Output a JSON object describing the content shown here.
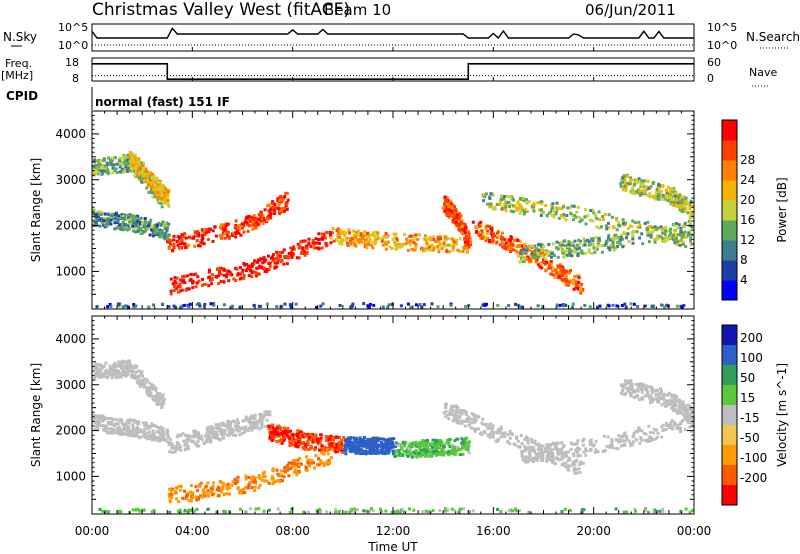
{
  "header": {
    "title": "Christmas Valley West (fitACF)",
    "beam": "Beam 10",
    "date": "06/Jun/2011"
  },
  "params": {
    "nsky_label": "N.Sky",
    "nsearch_label": "N.Search",
    "nsky_ticks": [
      "10^5",
      "10^0"
    ],
    "freq_label_1": "Freq.",
    "freq_label_2": "[MHz]",
    "freq_ticks": [
      "18",
      "8"
    ],
    "nave_label": "Nave",
    "nave_ticks": [
      "60",
      "0"
    ],
    "cpid_label": "CPID",
    "cpid_value": "normal (fast) 151 IF"
  },
  "colors": {
    "power": [
      "#0000ff",
      "#1a3fa5",
      "#3d7d8f",
      "#5fa85a",
      "#c4d33c",
      "#f5b400",
      "#ff8000",
      "#ff4000",
      "#ff0000"
    ],
    "velocity": [
      "#1414b4",
      "#2d5fc8",
      "#2fa05a",
      "#5ac83c",
      "#bebebe",
      "#f0c850",
      "#ff9a00",
      "#ff5a00",
      "#ff0000"
    ],
    "ground_scatter": "#bebebe"
  },
  "chart_data": [
    {
      "type": "line",
      "title": "N.Sky / N.Search",
      "x": [
        "00:00",
        "03:00",
        "15:00",
        "24:00"
      ],
      "series": [
        {
          "name": "N.Sky",
          "style": "solid"
        },
        {
          "name": "N.Search",
          "style": "dotted"
        }
      ],
      "ytick_labels_left": [
        "10^5",
        "10^0"
      ],
      "ytick_labels_right": [
        "10^5",
        "10^0"
      ]
    },
    {
      "type": "line",
      "xlim": [
        "00:00",
        "24:00"
      ],
      "series": [
        {
          "name": "Freq. [MHz]",
          "style": "solid",
          "points": [
            [
              "00:00",
              15.5
            ],
            [
              "03:00",
              15.5
            ],
            [
              "03:00",
              8.8
            ],
            [
              "15:00",
              8.8
            ],
            [
              "15:00",
              15.5
            ],
            [
              "24:00",
              15.5
            ]
          ]
        },
        {
          "name": "Nave",
          "style": "dotted",
          "points": [
            [
              "00:00",
              14
            ],
            [
              "24:00",
              14
            ]
          ]
        }
      ],
      "ylim_left": [
        8,
        18
      ],
      "ylim_right": [
        0,
        60
      ],
      "ytick_labels_left": [
        "18",
        "8"
      ],
      "ytick_labels_right": [
        "60",
        "0"
      ]
    },
    {
      "type": "heatmap",
      "xlabel": "",
      "ylabel": "Slant Range [km]",
      "xlim": [
        0,
        24
      ],
      "ylim": [
        180,
        4500
      ],
      "xtick_labels": [
        "00:00",
        "04:00",
        "08:00",
        "12:00",
        "16:00",
        "20:00",
        "00:00"
      ],
      "ytick_labels": [
        "1000",
        "2000",
        "3000",
        "4000"
      ],
      "colorbar": {
        "label": "Power [dB]",
        "tick_labels": [
          "4",
          "8",
          "12",
          "16",
          "20",
          "24",
          "28"
        ],
        "range": [
          0,
          30
        ]
      },
      "features": [
        {
          "t": [
            0.0,
            1.5,
            2.8
          ],
          "r": [
            3300,
            3400,
            2600
          ],
          "level": 12
        },
        {
          "t": [
            1.5,
            2.3,
            3.0
          ],
          "r": [
            3500,
            3000,
            2600
          ],
          "level": 18
        },
        {
          "t": [
            0.0,
            1.5,
            3.0
          ],
          "r": [
            2200,
            2100,
            1900
          ],
          "level": 10
        },
        {
          "t": [
            3.0,
            6.0,
            7.8
          ],
          "r": [
            1600,
            2000,
            2600
          ],
          "level": 26
        },
        {
          "t": [
            3.0,
            6.5,
            9.5
          ],
          "r": [
            700,
            1100,
            1800
          ],
          "level": 28
        },
        {
          "t": [
            9.5,
            11.5,
            15.0
          ],
          "r": [
            1800,
            1700,
            1600
          ],
          "level": 20
        },
        {
          "t": [
            14.0,
            14.5,
            15.0
          ],
          "r": [
            2500,
            2200,
            1700
          ],
          "level": 24
        },
        {
          "t": [
            15.2,
            17.5,
            19.5
          ],
          "r": [
            2000,
            1400,
            700
          ],
          "level": 24
        },
        {
          "t": [
            15.5,
            19.0,
            24.0
          ],
          "r": [
            2600,
            2300,
            1700
          ],
          "level": 14
        },
        {
          "t": [
            17.0,
            20.0,
            24.0
          ],
          "r": [
            1400,
            1600,
            2000
          ],
          "level": 12
        },
        {
          "t": [
            21.0,
            23.0,
            24.0
          ],
          "r": [
            3000,
            2700,
            2300
          ],
          "level": 14
        },
        {
          "t": [
            0.0,
            12.0,
            24.0
          ],
          "r": [
            250,
            250,
            250
          ],
          "level": 6
        }
      ]
    },
    {
      "type": "heatmap",
      "xlabel": "Time UT",
      "ylabel": "Slant Range [km]",
      "xlim": [
        0,
        24
      ],
      "ylim": [
        180,
        4500
      ],
      "xtick_labels": [
        "00:00",
        "04:00",
        "08:00",
        "12:00",
        "16:00",
        "20:00",
        "00:00"
      ],
      "ytick_labels": [
        "1000",
        "2000",
        "3000",
        "4000"
      ],
      "colorbar": {
        "label": "Velocity [m s^-1]",
        "tick_labels": [
          "200",
          "100",
          "50",
          "15",
          "-15",
          "-50",
          "-100",
          "-200"
        ],
        "range": [
          -250,
          250
        ]
      },
      "features": [
        {
          "t": [
            0.0,
            1.5,
            2.8
          ],
          "r": [
            3300,
            3400,
            2600
          ],
          "velocity": "ground"
        },
        {
          "t": [
            0.0,
            1.5,
            3.0
          ],
          "r": [
            2200,
            2100,
            1900
          ],
          "velocity": "ground"
        },
        {
          "t": [
            3.0,
            5.0,
            7.0
          ],
          "r": [
            1700,
            2000,
            2300
          ],
          "velocity": "ground"
        },
        {
          "t": [
            7.0,
            8.5,
            10.0
          ],
          "r": [
            2000,
            1800,
            1700
          ],
          "velocity": -200
        },
        {
          "t": [
            3.0,
            6.5,
            9.5
          ],
          "r": [
            600,
            900,
            1500
          ],
          "velocity": -90
        },
        {
          "t": [
            10.0,
            11.0,
            12.0
          ],
          "r": [
            1700,
            1700,
            1700
          ],
          "velocity": 130
        },
        {
          "t": [
            12.0,
            13.5,
            15.0
          ],
          "r": [
            1600,
            1650,
            1700
          ],
          "velocity": 40
        },
        {
          "t": [
            14.0,
            16.0,
            19.5
          ],
          "r": [
            2500,
            2000,
            1200
          ],
          "velocity": "ground"
        },
        {
          "t": [
            17.0,
            20.0,
            24.0
          ],
          "r": [
            1500,
            1700,
            2200
          ],
          "velocity": "ground"
        },
        {
          "t": [
            21.0,
            23.0,
            24.0
          ],
          "r": [
            3000,
            2700,
            2300
          ],
          "velocity": "ground"
        },
        {
          "t": [
            0.0,
            12.0,
            24.0
          ],
          "r": [
            250,
            250,
            250
          ],
          "velocity": 30
        }
      ]
    }
  ]
}
